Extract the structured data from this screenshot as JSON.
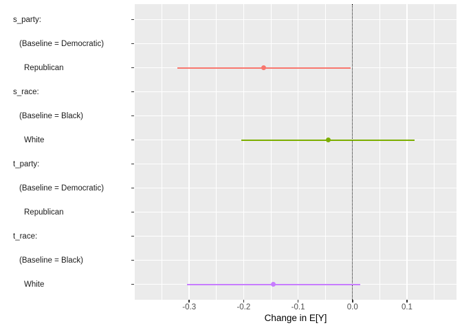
{
  "chart_data": {
    "type": "scatter",
    "subtype": "coefficient-pointrange-plot",
    "title": "",
    "xlabel": "Change in E[Y]",
    "ylabel": "",
    "legend_position": "none",
    "xlim": [
      -0.4,
      0.191
    ],
    "x_ticks": [
      {
        "value": -0.3,
        "label": "-0.3"
      },
      {
        "value": -0.2,
        "label": "-0.2"
      },
      {
        "value": -0.1,
        "label": "-0.1"
      },
      {
        "value": 0.0,
        "label": "0.0"
      },
      {
        "value": 0.1,
        "label": "0.1"
      }
    ],
    "x_minor_ticks": [
      -0.35,
      -0.25,
      -0.15,
      -0.05,
      0.05,
      0.15
    ],
    "grid": "on",
    "reference_line": {
      "x": 0,
      "style": "dotted",
      "color": "#000000"
    },
    "colors": {
      "panel_bg": "#EBEBEB",
      "grid": "#FFFFFF",
      "axis_tick": "#333333",
      "tick_label": "#4D4D4D"
    },
    "rows": [
      {
        "label": "s_party:",
        "indent": 0
      },
      {
        "label": "(Baseline = Democratic)",
        "indent": 1
      },
      {
        "label": "Republican",
        "indent": 2,
        "estimate": -0.163,
        "ci_low": -0.322,
        "ci_high": -0.004,
        "color": "#F8766D"
      },
      {
        "label": "s_race:",
        "indent": 0
      },
      {
        "label": "(Baseline = Black)",
        "indent": 1
      },
      {
        "label": "White",
        "indent": 2,
        "estimate": -0.044,
        "ci_low": -0.204,
        "ci_high": 0.114,
        "color": "#7CAE00"
      },
      {
        "label": "t_party:",
        "indent": 0
      },
      {
        "label": "(Baseline = Democratic)",
        "indent": 1
      },
      {
        "label": "Republican",
        "indent": 2
      },
      {
        "label": "t_race:",
        "indent": 0
      },
      {
        "label": "(Baseline = Black)",
        "indent": 1
      },
      {
        "label": "White",
        "indent": 2,
        "estimate": -0.145,
        "ci_low": -0.304,
        "ci_high": 0.014,
        "color": "#C77CFF"
      }
    ]
  }
}
